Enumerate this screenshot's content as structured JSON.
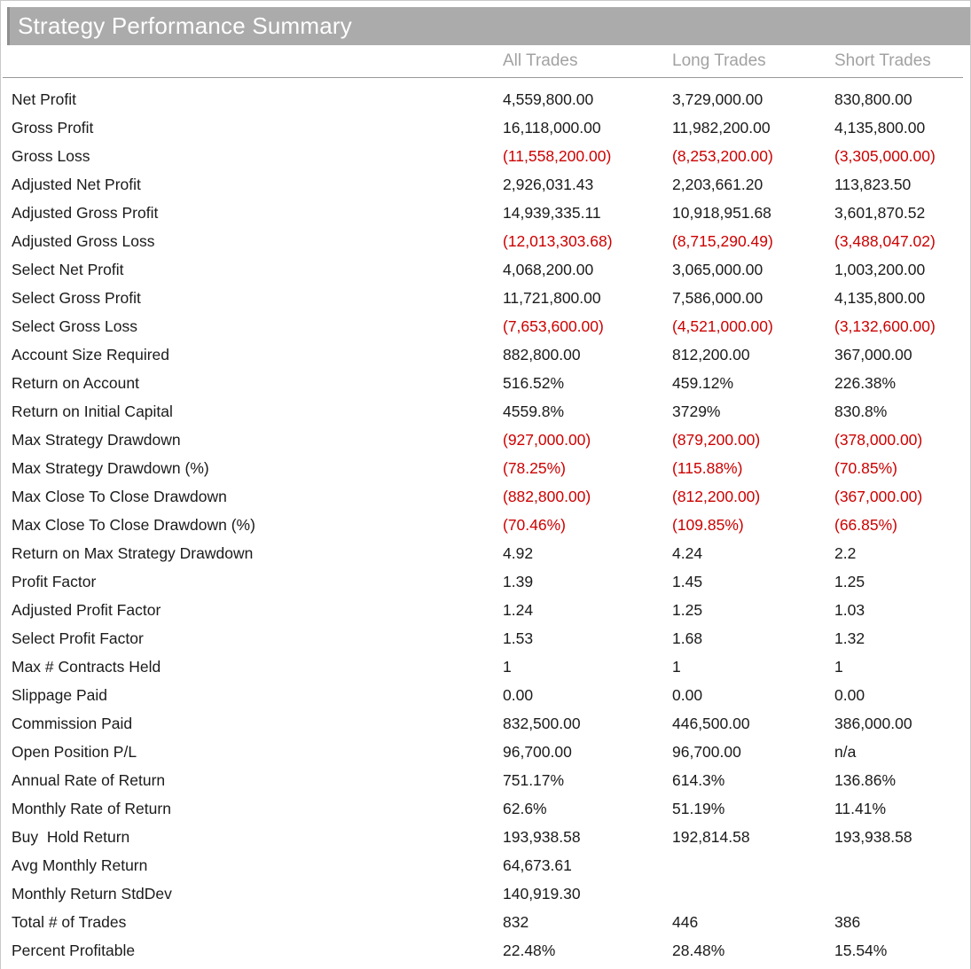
{
  "title": "Strategy Performance Summary",
  "colors": {
    "title_bar_bg": "#ababab",
    "title_bar_edge": "#8f8f8f",
    "title_text": "#ffffff",
    "header_text": "#a2a2a2",
    "body_text": "#1b1b1b",
    "negative": "#cc0000"
  },
  "table": {
    "columns": [
      "All Trades",
      "Long Trades",
      "Short Trades"
    ],
    "rows": [
      {
        "label": "Net Profit",
        "values": [
          "4,559,800.00",
          "3,729,000.00",
          "830,800.00"
        ]
      },
      {
        "label": "Gross Profit",
        "values": [
          "16,118,000.00",
          "11,982,200.00",
          "4,135,800.00"
        ]
      },
      {
        "label": "Gross Loss",
        "values": [
          "(11,558,200.00)",
          "(8,253,200.00)",
          "(3,305,000.00)"
        ]
      },
      {
        "label": "Adjusted Net Profit",
        "values": [
          "2,926,031.43",
          "2,203,661.20",
          "113,823.50"
        ]
      },
      {
        "label": "Adjusted Gross Profit",
        "values": [
          "14,939,335.11",
          "10,918,951.68",
          "3,601,870.52"
        ]
      },
      {
        "label": "Adjusted Gross Loss",
        "values": [
          "(12,013,303.68)",
          "(8,715,290.49)",
          "(3,488,047.02)"
        ]
      },
      {
        "label": "Select Net Profit",
        "values": [
          "4,068,200.00",
          "3,065,000.00",
          "1,003,200.00"
        ]
      },
      {
        "label": "Select Gross Profit",
        "values": [
          "11,721,800.00",
          "7,586,000.00",
          "4,135,800.00"
        ]
      },
      {
        "label": "Select Gross Loss",
        "values": [
          "(7,653,600.00)",
          "(4,521,000.00)",
          "(3,132,600.00)"
        ]
      },
      {
        "label": "Account Size Required",
        "values": [
          "882,800.00",
          "812,200.00",
          "367,000.00"
        ]
      },
      {
        "label": "Return on Account",
        "values": [
          "516.52%",
          "459.12%",
          "226.38%"
        ]
      },
      {
        "label": "Return on Initial Capital",
        "values": [
          "4559.8%",
          "3729%",
          "830.8%"
        ]
      },
      {
        "label": "Max Strategy Drawdown",
        "values": [
          "(927,000.00)",
          "(879,200.00)",
          "(378,000.00)"
        ]
      },
      {
        "label": "Max Strategy Drawdown (%)",
        "values": [
          "(78.25%)",
          "(115.88%)",
          "(70.85%)"
        ]
      },
      {
        "label": "Max Close To Close Drawdown",
        "values": [
          "(882,800.00)",
          "(812,200.00)",
          "(367,000.00)"
        ]
      },
      {
        "label": "Max Close To Close Drawdown (%)",
        "values": [
          "(70.46%)",
          "(109.85%)",
          "(66.85%)"
        ]
      },
      {
        "label": "Return on Max Strategy Drawdown",
        "values": [
          "4.92",
          "4.24",
          "2.2"
        ]
      },
      {
        "label": "Profit Factor",
        "values": [
          "1.39",
          "1.45",
          "1.25"
        ]
      },
      {
        "label": "Adjusted Profit Factor",
        "values": [
          "1.24",
          "1.25",
          "1.03"
        ]
      },
      {
        "label": "Select Profit Factor",
        "values": [
          "1.53",
          "1.68",
          "1.32"
        ]
      },
      {
        "label": "Max # Contracts Held",
        "values": [
          "1",
          "1",
          "1"
        ]
      },
      {
        "label": "Slippage Paid",
        "values": [
          "0.00",
          "0.00",
          "0.00"
        ]
      },
      {
        "label": "Commission Paid",
        "values": [
          "832,500.00",
          "446,500.00",
          "386,000.00"
        ]
      },
      {
        "label": "Open Position P/L",
        "values": [
          "96,700.00",
          "96,700.00",
          "n/a"
        ]
      },
      {
        "label": "Annual Rate of Return",
        "values": [
          "751.17%",
          "614.3%",
          "136.86%"
        ]
      },
      {
        "label": "Monthly Rate of Return",
        "values": [
          "62.6%",
          "51.19%",
          "11.41%"
        ]
      },
      {
        "label": "Buy  Hold Return",
        "values": [
          "193,938.58",
          "192,814.58",
          "193,938.58"
        ]
      },
      {
        "label": "Avg Monthly Return",
        "values": [
          "64,673.61",
          "",
          ""
        ]
      },
      {
        "label": "Monthly Return StdDev",
        "values": [
          "140,919.30",
          "",
          ""
        ]
      },
      {
        "label": "Total # of Trades",
        "values": [
          "832",
          "446",
          "386"
        ]
      },
      {
        "label": "Percent Profitable",
        "values": [
          "22.48%",
          "28.48%",
          "15.54%"
        ]
      }
    ]
  }
}
